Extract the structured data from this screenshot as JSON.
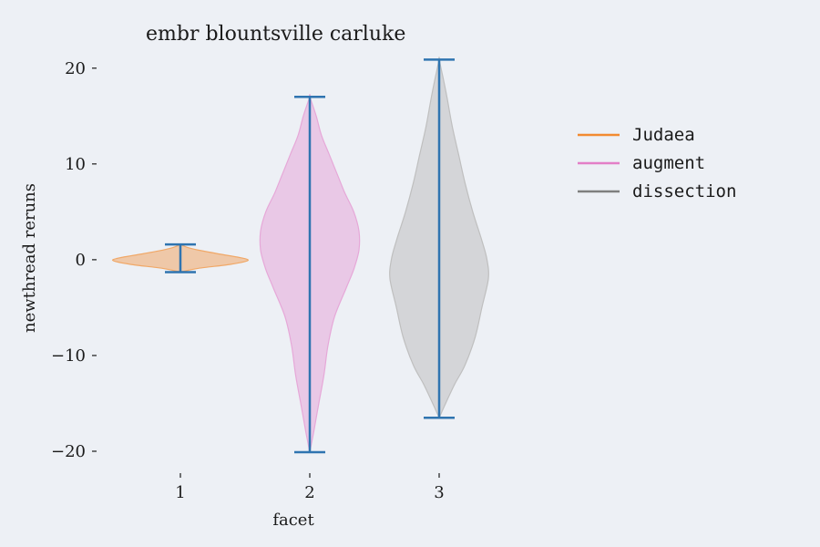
{
  "chart_data": {
    "type": "violin",
    "title": "embr blountsville carluke",
    "xlabel": "facet",
    "ylabel": "newthread reruns",
    "x_ticks": [
      "1",
      "2",
      "3"
    ],
    "y_ticks": [
      {
        "value": 20,
        "label": "20"
      },
      {
        "value": 10,
        "label": "10"
      },
      {
        "value": 0,
        "label": "0"
      },
      {
        "value": -10,
        "label": "−10"
      },
      {
        "value": -20,
        "label": "−20"
      }
    ],
    "ylim": [
      -22,
      23.5
    ],
    "grid": false,
    "legend_position": "right",
    "extrema_color": "#2f74b0",
    "series": [
      {
        "name": "Judaea",
        "position": 1,
        "min": -1.3,
        "max": 1.6,
        "color": "#f0a868",
        "legend_color": "#f28b30",
        "density": [
          {
            "y": -1.3,
            "w": 0.0
          },
          {
            "y": -0.9,
            "w": 0.14
          },
          {
            "y": -0.5,
            "w": 0.38
          },
          {
            "y": -0.1,
            "w": 0.52
          },
          {
            "y": 0.2,
            "w": 0.47
          },
          {
            "y": 0.6,
            "w": 0.3
          },
          {
            "y": 1.0,
            "w": 0.14
          },
          {
            "y": 1.3,
            "w": 0.05
          },
          {
            "y": 1.6,
            "w": 0.0
          }
        ]
      },
      {
        "name": "augment",
        "position": 2,
        "min": -20.1,
        "max": 17.0,
        "color": "#e6a8d8",
        "legend_color": "#e37fc7",
        "density": [
          {
            "y": -20.1,
            "w": 0.0
          },
          {
            "y": -18,
            "w": 0.03
          },
          {
            "y": -15,
            "w": 0.07
          },
          {
            "y": -12,
            "w": 0.11
          },
          {
            "y": -9,
            "w": 0.14
          },
          {
            "y": -6,
            "w": 0.19
          },
          {
            "y": -3,
            "w": 0.28
          },
          {
            "y": -1,
            "w": 0.34
          },
          {
            "y": 1,
            "w": 0.38
          },
          {
            "y": 3,
            "w": 0.38
          },
          {
            "y": 5,
            "w": 0.34
          },
          {
            "y": 7,
            "w": 0.27
          },
          {
            "y": 9,
            "w": 0.21
          },
          {
            "y": 11,
            "w": 0.15
          },
          {
            "y": 13,
            "w": 0.09
          },
          {
            "y": 15,
            "w": 0.05
          },
          {
            "y": 17.0,
            "w": 0.0
          }
        ]
      },
      {
        "name": "dissection",
        "position": 3,
        "min": -16.5,
        "max": 20.9,
        "color": "#bfbfbf",
        "legend_color": "#7f7f7f",
        "density": [
          {
            "y": -16.5,
            "w": 0.0
          },
          {
            "y": -15,
            "w": 0.05
          },
          {
            "y": -13,
            "w": 0.12
          },
          {
            "y": -11,
            "w": 0.2
          },
          {
            "y": -8,
            "w": 0.28
          },
          {
            "y": -5,
            "w": 0.33
          },
          {
            "y": -2,
            "w": 0.38
          },
          {
            "y": 0,
            "w": 0.37
          },
          {
            "y": 2,
            "w": 0.33
          },
          {
            "y": 5,
            "w": 0.26
          },
          {
            "y": 8,
            "w": 0.2
          },
          {
            "y": 11,
            "w": 0.15
          },
          {
            "y": 14,
            "w": 0.1
          },
          {
            "y": 17,
            "w": 0.06
          },
          {
            "y": 19,
            "w": 0.03
          },
          {
            "y": 20.9,
            "w": 0.0
          }
        ]
      }
    ]
  }
}
